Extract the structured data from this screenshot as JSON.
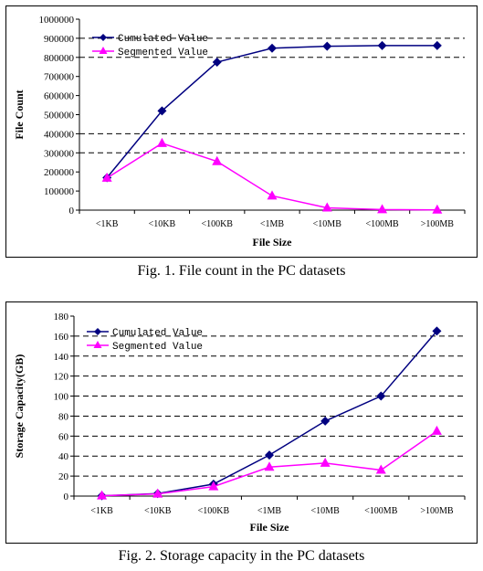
{
  "figures": [
    {
      "caption": "Fig. 1.  File count in the PC datasets"
    },
    {
      "caption": "Fig. 2.  Storage capacity in the PC datasets"
    }
  ],
  "chart_data": [
    {
      "type": "line",
      "title": "",
      "xlabel": "File Size",
      "ylabel": "File Count",
      "categories": [
        "<1KB",
        "<10KB",
        "<100KB",
        "<1MB",
        "<10MB",
        "<100MB",
        ">100MB"
      ],
      "ylim": [
        0,
        1000000
      ],
      "yticks": [
        0,
        100000,
        200000,
        300000,
        400000,
        500000,
        600000,
        700000,
        800000,
        900000,
        1000000
      ],
      "gridlines": [
        300000,
        400000,
        800000,
        900000
      ],
      "legend_position": "top-left",
      "series": [
        {
          "name": "Cumulated Value",
          "color": "#000080",
          "marker": "diamond",
          "values": [
            170000,
            520000,
            775000,
            848000,
            858000,
            862000,
            862000
          ]
        },
        {
          "name": "Segmented Value",
          "color": "#ff00ff",
          "marker": "triangle",
          "values": [
            168000,
            350000,
            255000,
            75000,
            12000,
            3000,
            1000
          ]
        }
      ]
    },
    {
      "type": "line",
      "title": "",
      "xlabel": "File Size",
      "ylabel": "Storage Capacity(GB)",
      "categories": [
        "<1KB",
        "<10KB",
        "<100KB",
        "<1MB",
        "<10MB",
        "<100MB",
        ">100MB"
      ],
      "ylim": [
        0,
        180
      ],
      "yticks": [
        0,
        20,
        40,
        60,
        80,
        100,
        120,
        140,
        160,
        180
      ],
      "gridlines": [
        20,
        40,
        60,
        80,
        100,
        120,
        140,
        160
      ],
      "legend_position": "top-left",
      "series": [
        {
          "name": "Cumulated Value",
          "color": "#000080",
          "marker": "diamond",
          "values": [
            0.3,
            2.5,
            12,
            41,
            75,
            100,
            165
          ]
        },
        {
          "name": "Segmented Value",
          "color": "#ff00ff",
          "marker": "triangle",
          "values": [
            0.3,
            2.2,
            9.5,
            29,
            33,
            26,
            65
          ]
        }
      ]
    }
  ]
}
